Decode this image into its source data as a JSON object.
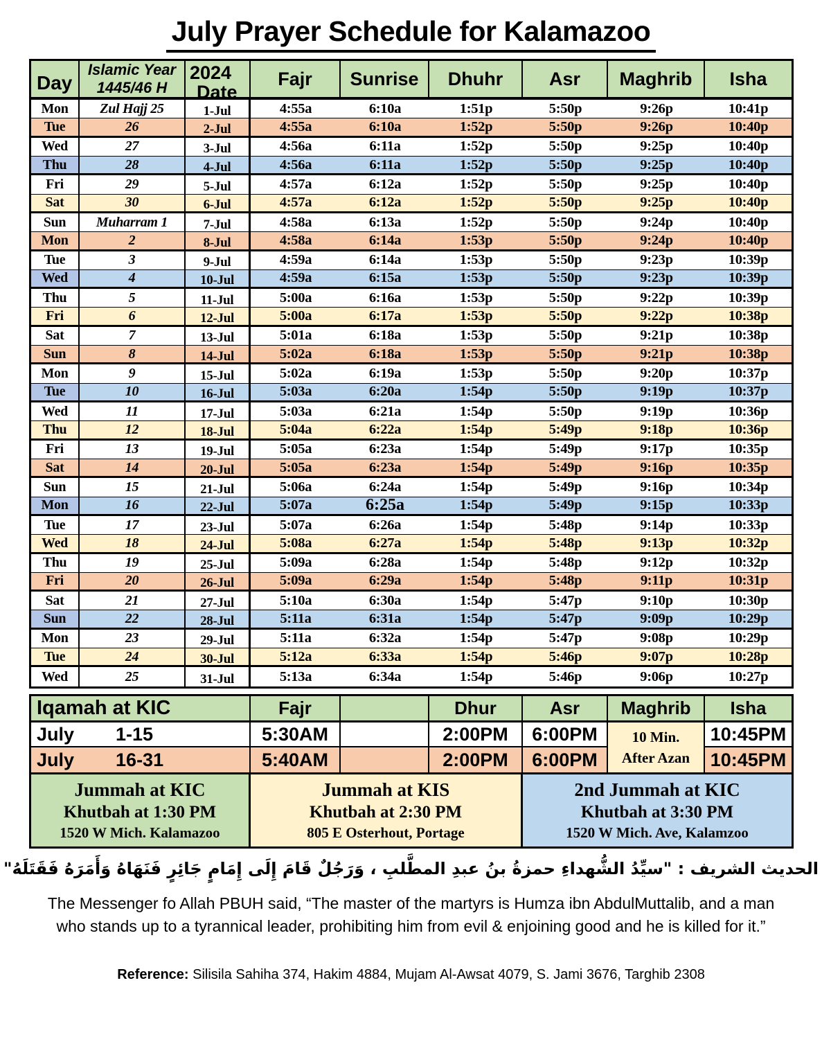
{
  "page": {
    "title": "July Prayer Schedule for Kalamazoo"
  },
  "colors": {
    "header_green": "#c6e0b4",
    "row_orange": "#f8cbad",
    "row_blue": "#bdd7ee",
    "row_blue_day": "#b4c6e7",
    "row_yellow": "#fff2cc",
    "border": "#000000"
  },
  "main_table": {
    "header": {
      "day": "Day",
      "islamic_line1": "Islamic Year",
      "islamic_line2": "1445/46 H",
      "date_line1": "2024",
      "date_line2": "Date",
      "times": [
        "Fajr",
        "Sunrise",
        "Dhuhr",
        "Asr",
        "Maghrib",
        "Isha"
      ]
    },
    "rows": [
      {
        "day": "Mon",
        "islamic": "Zul Hajj 25",
        "date": "1-Jul",
        "times": [
          "4:55a",
          "6:10a",
          "1:51p",
          "5:50p",
          "9:26p",
          "10:41p"
        ],
        "bg": "white"
      },
      {
        "day": "Tue",
        "islamic": "26",
        "date": "2-Jul",
        "times": [
          "4:55a",
          "6:10a",
          "1:52p",
          "5:50p",
          "9:26p",
          "10:40p"
        ],
        "bg": "orange"
      },
      {
        "day": "Wed",
        "islamic": "27",
        "date": "3-Jul",
        "times": [
          "4:56a",
          "6:11a",
          "1:52p",
          "5:50p",
          "9:25p",
          "10:40p"
        ],
        "bg": "white"
      },
      {
        "day": "Thu",
        "islamic": "28",
        "date": "4-Jul",
        "times": [
          "4:56a",
          "6:11a",
          "1:52p",
          "5:50p",
          "9:25p",
          "10:40p"
        ],
        "bg": "blue"
      },
      {
        "day": "Fri",
        "islamic": "29",
        "date": "5-Jul",
        "times": [
          "4:57a",
          "6:12a",
          "1:52p",
          "5:50p",
          "9:25p",
          "10:40p"
        ],
        "bg": "white"
      },
      {
        "day": "Sat",
        "islamic": "30",
        "date": "6-Jul",
        "times": [
          "4:57a",
          "6:12a",
          "1:52p",
          "5:50p",
          "9:25p",
          "10:40p"
        ],
        "bg": "yellow"
      },
      {
        "day": "Sun",
        "islamic": "Muharram 1",
        "date": "7-Jul",
        "times": [
          "4:58a",
          "6:13a",
          "1:52p",
          "5:50p",
          "9:24p",
          "10:40p"
        ],
        "bg": "white"
      },
      {
        "day": "Mon",
        "islamic": "2",
        "date": "8-Jul",
        "times": [
          "4:58a",
          "6:14a",
          "1:53p",
          "5:50p",
          "9:24p",
          "10:40p"
        ],
        "bg": "orange"
      },
      {
        "day": "Tue",
        "islamic": "3",
        "date": "9-Jul",
        "times": [
          "4:59a",
          "6:14a",
          "1:53p",
          "5:50p",
          "9:23p",
          "10:39p"
        ],
        "bg": "white"
      },
      {
        "day": "Wed",
        "islamic": "4",
        "date": "10-Jul",
        "times": [
          "4:59a",
          "6:15a",
          "1:53p",
          "5:50p",
          "9:23p",
          "10:39p"
        ],
        "bg": "blue"
      },
      {
        "day": "Thu",
        "islamic": "5",
        "date": "11-Jul",
        "times": [
          "5:00a",
          "6:16a",
          "1:53p",
          "5:50p",
          "9:22p",
          "10:39p"
        ],
        "bg": "white"
      },
      {
        "day": "Fri",
        "islamic": "6",
        "date": "12-Jul",
        "times": [
          "5:00a",
          "6:17a",
          "1:53p",
          "5:50p",
          "9:22p",
          "10:38p"
        ],
        "bg": "yellow"
      },
      {
        "day": "Sat",
        "islamic": "7",
        "date": "13-Jul",
        "times": [
          "5:01a",
          "6:18a",
          "1:53p",
          "5:50p",
          "9:21p",
          "10:38p"
        ],
        "bg": "white"
      },
      {
        "day": "Sun",
        "islamic": "8",
        "date": "14-Jul",
        "times": [
          "5:02a",
          "6:18a",
          "1:53p",
          "5:50p",
          "9:21p",
          "10:38p"
        ],
        "bg": "orange"
      },
      {
        "day": "Mon",
        "islamic": "9",
        "date": "15-Jul",
        "times": [
          "5:02a",
          "6:19a",
          "1:53p",
          "5:50p",
          "9:20p",
          "10:37p"
        ],
        "bg": "white"
      },
      {
        "day": "Tue",
        "islamic": "10",
        "date": "16-Jul",
        "times": [
          "5:03a",
          "6:20a",
          "1:54p",
          "5:50p",
          "9:19p",
          "10:37p"
        ],
        "bg": "blue"
      },
      {
        "day": "Wed",
        "islamic": "11",
        "date": "17-Jul",
        "times": [
          "5:03a",
          "6:21a",
          "1:54p",
          "5:50p",
          "9:19p",
          "10:36p"
        ],
        "bg": "white"
      },
      {
        "day": "Thu",
        "islamic": "12",
        "date": "18-Jul",
        "times": [
          "5:04a",
          "6:22a",
          "1:54p",
          "5:49p",
          "9:18p",
          "10:36p"
        ],
        "bg": "yellow"
      },
      {
        "day": "Fri",
        "islamic": "13",
        "date": "19-Jul",
        "times": [
          "5:05a",
          "6:23a",
          "1:54p",
          "5:49p",
          "9:17p",
          "10:35p"
        ],
        "bg": "white"
      },
      {
        "day": "Sat",
        "islamic": "14",
        "date": "20-Jul",
        "times": [
          "5:05a",
          "6:23a",
          "1:54p",
          "5:49p",
          "9:16p",
          "10:35p"
        ],
        "bg": "orange"
      },
      {
        "day": "Sun",
        "islamic": "15",
        "date": "21-Jul",
        "times": [
          "5:06a",
          "6:24a",
          "1:54p",
          "5:49p",
          "9:16p",
          "10:34p"
        ],
        "bg": "white"
      },
      {
        "day": "Mon",
        "islamic": "16",
        "date": "22-Jul",
        "times": [
          "5:07a",
          "6:25a",
          "1:54p",
          "5:49p",
          "9:15p",
          "10:33p"
        ],
        "bg": "blue",
        "large_sunrise": true
      },
      {
        "day": "Tue",
        "islamic": "17",
        "date": "23-Jul",
        "times": [
          "5:07a",
          "6:26a",
          "1:54p",
          "5:48p",
          "9:14p",
          "10:33p"
        ],
        "bg": "white"
      },
      {
        "day": "Wed",
        "islamic": "18",
        "date": "24-Jul",
        "times": [
          "5:08a",
          "6:27a",
          "1:54p",
          "5:48p",
          "9:13p",
          "10:32p"
        ],
        "bg": "yellow"
      },
      {
        "day": "Thu",
        "islamic": "19",
        "date": "25-Jul",
        "times": [
          "5:09a",
          "6:28a",
          "1:54p",
          "5:48p",
          "9:12p",
          "10:32p"
        ],
        "bg": "white"
      },
      {
        "day": "Fri",
        "islamic": "20",
        "date": "26-Jul",
        "times": [
          "5:09a",
          "6:29a",
          "1:54p",
          "5:48p",
          "9:11p",
          "10:31p"
        ],
        "bg": "orange"
      },
      {
        "day": "Sat",
        "islamic": "21",
        "date": "27-Jul",
        "times": [
          "5:10a",
          "6:30a",
          "1:54p",
          "5:47p",
          "9:10p",
          "10:30p"
        ],
        "bg": "white"
      },
      {
        "day": "Sun",
        "islamic": "22",
        "date": "28-Jul",
        "times": [
          "5:11a",
          "6:31a",
          "1:54p",
          "5:47p",
          "9:09p",
          "10:29p"
        ],
        "bg": "blue"
      },
      {
        "day": "Mon",
        "islamic": "23",
        "date": "29-Jul",
        "times": [
          "5:11a",
          "6:32a",
          "1:54p",
          "5:47p",
          "9:08p",
          "10:29p"
        ],
        "bg": "white"
      },
      {
        "day": "Tue",
        "islamic": "24",
        "date": "30-Jul",
        "times": [
          "5:12a",
          "6:33a",
          "1:54p",
          "5:46p",
          "9:07p",
          "10:28p"
        ],
        "bg": "yellow"
      },
      {
        "day": "Wed",
        "islamic": "25",
        "date": "31-Jul",
        "times": [
          "5:13a",
          "6:34a",
          "1:54p",
          "5:46p",
          "9:06p",
          "10:27p"
        ],
        "bg": "white"
      }
    ]
  },
  "iqamah": {
    "header": {
      "label": "Iqamah at KIC",
      "fajr": "Fajr",
      "sunrise": "",
      "dhur": "Dhur",
      "asr": "Asr",
      "maghrib": "Maghrib",
      "isha": "Isha"
    },
    "rows": [
      {
        "month": "July",
        "range": "1-15",
        "fajr": "5:30AM",
        "dhur": "2:00PM",
        "asr": "6:00PM",
        "isha": "10:45PM",
        "bg": "white"
      },
      {
        "month": "July",
        "range": "16-31",
        "fajr": "5:40AM",
        "dhur": "2:00PM",
        "asr": "6:00PM",
        "isha": "10:45PM",
        "bg": "orange"
      }
    ],
    "maghrib_note_line1": "10 Min.",
    "maghrib_note_line2": "After Azan"
  },
  "jummah": [
    {
      "lines": [
        "Jummah at KIC",
        "Khutbah at 1:30 PM",
        "1520 W Mich. Kalamazoo"
      ]
    },
    {
      "lines": [
        "Jummah at KIS",
        "Khutbah at 2:30 PM",
        "805 E Osterhout, Portage"
      ]
    },
    {
      "lines": [
        "2nd Jummah at KIC",
        "Khutbah at 3:30 PM",
        "1520 W Mich. Ave, Kalamzoo"
      ]
    }
  ],
  "hadith": {
    "arabic": "الحديث الشريف : \"سيِّدُ الشُّهداءِ حمزةُ بنُ عبدِ المطَّلبِ ، وَرَجُلٌ قَامَ إِلَى إِمَامٍ جَائِرٍ فَنَهَاهُ وَأَمَرَهُ فَقَتَلَهُ\"",
    "english": "The Messenger fo Allah PBUH said, “The master of the martyrs is Humza ibn AbdulMuttalib, and a man who stands up to a tyrannical leader, prohibiting him from evil & enjoining good and he is killed for it.”"
  },
  "reference": {
    "label": "Reference:",
    "text": " Silisila Sahiha 374, Hakim 4884, Mujam Al-Awsat 4079, S. Jami 3676, Targhib 2308"
  }
}
